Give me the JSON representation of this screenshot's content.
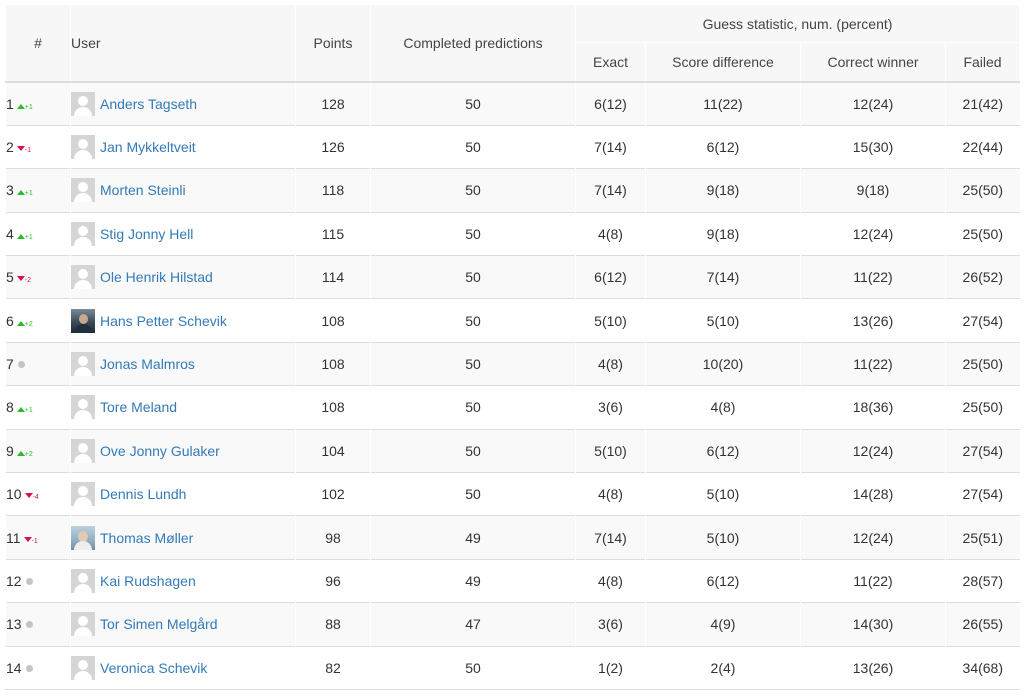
{
  "header": {
    "rank": "#",
    "user": "User",
    "points": "Points",
    "completed": "Completed predictions",
    "guess_group": "Guess statistic, num. (percent)",
    "exact": "Exact",
    "score_difference": "Score difference",
    "correct_winner": "Correct winner",
    "failed": "Failed"
  },
  "rows": [
    {
      "rank": "1",
      "move": "up",
      "change": "+1",
      "name": "Anders Tagseth",
      "avatar": "placeholder",
      "points": "128",
      "completed": "50",
      "exact": "6(12)",
      "score_diff": "11(22)",
      "winner": "12(24)",
      "failed": "21(42)"
    },
    {
      "rank": "2",
      "move": "down",
      "change": "-1",
      "name": "Jan Mykkeltveit",
      "avatar": "placeholder",
      "points": "126",
      "completed": "50",
      "exact": "7(14)",
      "score_diff": "6(12)",
      "winner": "15(30)",
      "failed": "22(44)"
    },
    {
      "rank": "3",
      "move": "up",
      "change": "+1",
      "name": "Morten Steinli",
      "avatar": "placeholder",
      "points": "118",
      "completed": "50",
      "exact": "7(14)",
      "score_diff": "9(18)",
      "winner": "9(18)",
      "failed": "25(50)"
    },
    {
      "rank": "4",
      "move": "up",
      "change": "+1",
      "name": "Stig Jonny Hell",
      "avatar": "placeholder",
      "points": "115",
      "completed": "50",
      "exact": "4(8)",
      "score_diff": "9(18)",
      "winner": "12(24)",
      "failed": "25(50)"
    },
    {
      "rank": "5",
      "move": "down",
      "change": "-2",
      "name": "Ole Henrik Hilstad",
      "avatar": "placeholder",
      "points": "114",
      "completed": "50",
      "exact": "6(12)",
      "score_diff": "7(14)",
      "winner": "11(22)",
      "failed": "26(52)"
    },
    {
      "rank": "6",
      "move": "up",
      "change": "+2",
      "name": "Hans Petter Schevik",
      "avatar": "photo-a",
      "points": "108",
      "completed": "50",
      "exact": "5(10)",
      "score_diff": "5(10)",
      "winner": "13(26)",
      "failed": "27(54)"
    },
    {
      "rank": "7",
      "move": "same",
      "change": "",
      "name": "Jonas Malmros",
      "avatar": "placeholder",
      "points": "108",
      "completed": "50",
      "exact": "4(8)",
      "score_diff": "10(20)",
      "winner": "11(22)",
      "failed": "25(50)"
    },
    {
      "rank": "8",
      "move": "up",
      "change": "+1",
      "name": "Tore Meland",
      "avatar": "placeholder",
      "points": "108",
      "completed": "50",
      "exact": "3(6)",
      "score_diff": "4(8)",
      "winner": "18(36)",
      "failed": "25(50)"
    },
    {
      "rank": "9",
      "move": "up",
      "change": "+2",
      "name": "Ove Jonny Gulaker",
      "avatar": "placeholder",
      "points": "104",
      "completed": "50",
      "exact": "5(10)",
      "score_diff": "6(12)",
      "winner": "12(24)",
      "failed": "27(54)"
    },
    {
      "rank": "10",
      "move": "down",
      "change": "-4",
      "name": "Dennis Lundh",
      "avatar": "placeholder",
      "points": "102",
      "completed": "50",
      "exact": "4(8)",
      "score_diff": "5(10)",
      "winner": "14(28)",
      "failed": "27(54)"
    },
    {
      "rank": "11",
      "move": "down",
      "change": "-1",
      "name": "Thomas Møller",
      "avatar": "photo-b",
      "points": "98",
      "completed": "49",
      "exact": "7(14)",
      "score_diff": "5(10)",
      "winner": "12(24)",
      "failed": "25(51)"
    },
    {
      "rank": "12",
      "move": "same",
      "change": "",
      "name": "Kai Rudshagen",
      "avatar": "placeholder",
      "points": "96",
      "completed": "49",
      "exact": "4(8)",
      "score_diff": "6(12)",
      "winner": "11(22)",
      "failed": "28(57)"
    },
    {
      "rank": "13",
      "move": "same",
      "change": "",
      "name": "Tor Simen Melgård",
      "avatar": "placeholder",
      "points": "88",
      "completed": "47",
      "exact": "3(6)",
      "score_diff": "4(9)",
      "winner": "14(30)",
      "failed": "26(55)"
    },
    {
      "rank": "14",
      "move": "same",
      "change": "",
      "name": "Veronica Schevik",
      "avatar": "placeholder",
      "points": "82",
      "completed": "50",
      "exact": "1(2)",
      "score_diff": "2(4)",
      "winner": "13(26)",
      "failed": "34(68)"
    }
  ]
}
